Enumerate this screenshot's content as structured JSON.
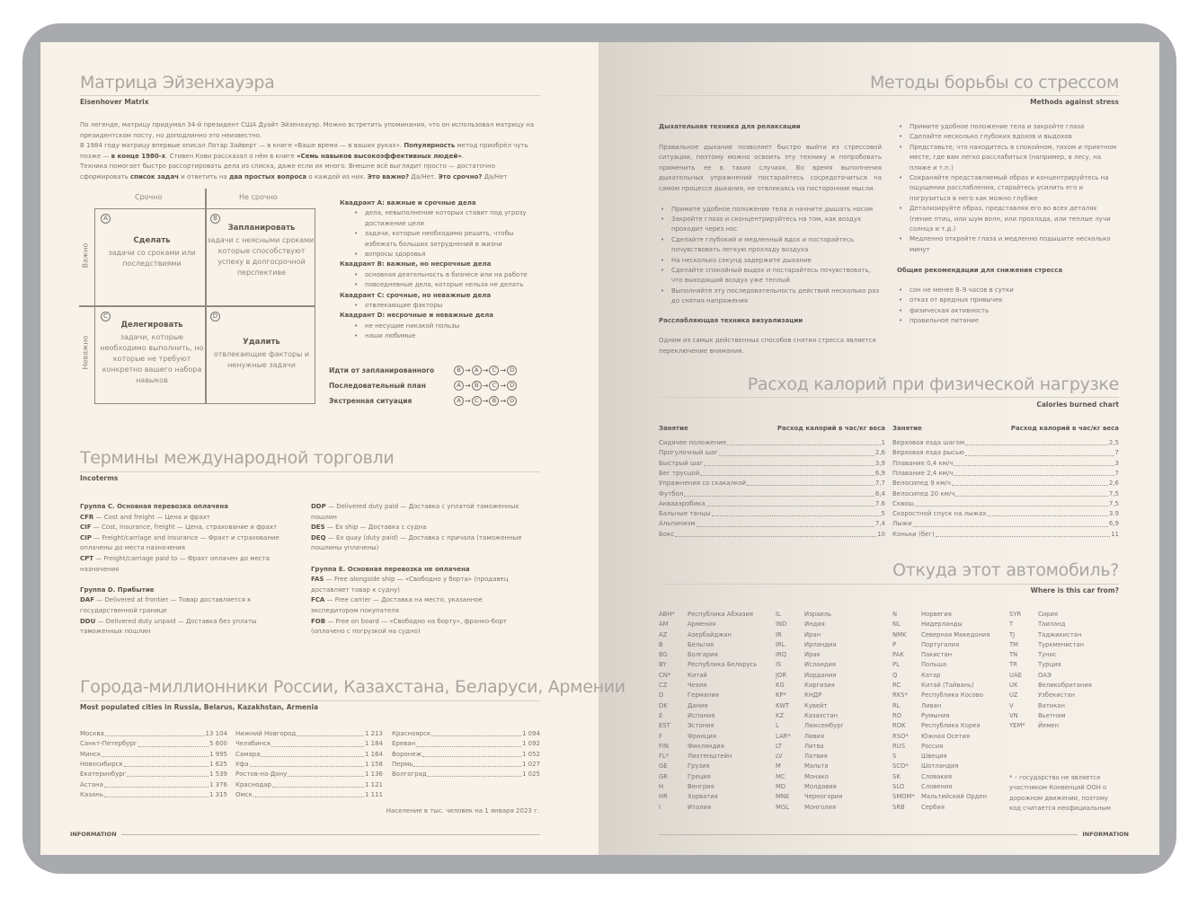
{
  "eisenhower": {
    "title": "Матрица Эйзенхауэра",
    "subtitle": "Eisenhover Matrix",
    "paragraph": [
      {
        "t": "По легенде, матрицу придумал 34-й президент США Дуайт Эйзенхауэр. Можно встретить упоминания, что он использовал матрицу на президентском посту, но доподлинно это неизвестно."
      },
      {
        "t": "\nВ 1984 году матрицу впервые описал Лотар Зайверт — в книге «Ваше время — в ваших руках». "
      },
      {
        "t": "Популярность",
        "b": true
      },
      {
        "t": " метод приобрёл чуть позже — "
      },
      {
        "t": "в конце 1980-х",
        "b": true
      },
      {
        "t": ". Стивен Кови рассказал о нём в книге "
      },
      {
        "t": "«Семь навыков высокоэффективных людей»",
        "b": true
      },
      {
        "t": "."
      },
      {
        "t": "\nТехника помогает быстро рассортировать дела из списка, даже если их много. Внешне всё выглядит просто — достаточно сформировать "
      },
      {
        "t": "список задач",
        "b": true
      },
      {
        "t": " и ответить на "
      },
      {
        "t": "два простых вопроса",
        "b": true
      },
      {
        "t": " о каждой из них. "
      },
      {
        "t": "Это важно?",
        "b": true
      },
      {
        "t": " Да/Нет. "
      },
      {
        "t": "Это срочно?",
        "b": true
      },
      {
        "t": " Да/Нет"
      }
    ],
    "col_urgent": "Срочно",
    "col_not_urgent": "Не срочно",
    "row_important": "Важно",
    "row_not_important": "Неважно",
    "quadrants": [
      {
        "letter": "A",
        "title": "Сделать",
        "text": "задачи со сроками или последствиями"
      },
      {
        "letter": "B",
        "title": "Запланировать",
        "text": "задачи с неясными сроками, которые способствуют успеху в долгосрочной перспективе"
      },
      {
        "letter": "C",
        "title": "Делегировать",
        "text": "задачи, которые необходимо выполнить, но которые не требуют конкретно вашего набора навыков"
      },
      {
        "letter": "D",
        "title": "Удалить",
        "text": "отвлекающие факторы и ненужные задачи"
      }
    ],
    "details": [
      {
        "head": "Квадрант A: важные и срочные дела",
        "items": [
          "дела, невыполнение которых ставит под угрозу достижение цели",
          "задачи, которые необходимо решить, чтобы избежать больших затруднений в жизни",
          "вопросы здоровья"
        ]
      },
      {
        "head": "Квадрант B: важные, но несрочные дела",
        "items": [
          "основная деятельность в бизнесе или на работе",
          "повседневные дела, которые нельзя не делать"
        ]
      },
      {
        "head": "Квадрант C: срочные, но неважные дела",
        "items": [
          "отвлекающие факторы"
        ]
      },
      {
        "head": "Квадрант D: несрочные и неважные дела",
        "items": [
          "не несущие никакой пользы",
          "наши любимые"
        ]
      }
    ],
    "sequences": [
      {
        "label": "Идти от запланированного",
        "order": [
          "B",
          "A",
          "C",
          "D"
        ]
      },
      {
        "label": "Последовательный план",
        "order": [
          "A",
          "B",
          "C",
          "D"
        ]
      },
      {
        "label": "Экстренная ситуация",
        "order": [
          "A",
          "C",
          "B",
          "D"
        ]
      }
    ]
  },
  "incoterms": {
    "title": "Термины международной торговли",
    "subtitle": "Incoterms",
    "col1": [
      {
        "head": "Группа C. Основная перевозка оплачена"
      },
      {
        "code": "CFR",
        "text": " — Cost and freight — Цена и фрахт"
      },
      {
        "code": "CIF",
        "text": " — Cost, insurance, freight — Цена, страхование и фрахт"
      },
      {
        "code": "CIP",
        "text": " — Freight/carriage and insurance — Фрахт и страхование оплачены до места назначения"
      },
      {
        "code": "CPT",
        "text": " — Freight/carriage paid to — Фрахт оплачен до места назначения"
      },
      {
        "gap": true
      },
      {
        "head": "Группа D. Прибытие"
      },
      {
        "code": "DAF",
        "text": " — Delivered at frontier — Товар доставляется к государственной границе"
      },
      {
        "code": "DDU",
        "text": " — Delivered duty unpaid — Доставка без уплаты таможенных пошлин"
      }
    ],
    "col2": [
      {
        "code": "DDP",
        "text": " — Delivered duty paid — Доставка с уплатой таможенных пошлин"
      },
      {
        "code": "DES",
        "text": " — Ex ship — Доставка с судна"
      },
      {
        "code": "DEQ",
        "text": " — Ex quay (duty paid) — Доставка с причала (таможенные пошлины уплачены)"
      },
      {
        "gap": true
      },
      {
        "head": "Группа E. Основная перевозка не оплачена"
      },
      {
        "code": "FAS",
        "text": " — Free alongside ship — «Свободно у борта» (продавец доставляет товар к судну)"
      },
      {
        "code": "FCA",
        "text": " — Free carrier — Доставка на место, указанное экспедитором покупателя"
      },
      {
        "code": "FOB",
        "text": " — Free on board — «Свободно на борту», франко-борт (оплачено с погрузкой на судно)"
      }
    ]
  },
  "cities": {
    "title": "Города-миллионники России, Казахстана, Беларуси, Армении",
    "subtitle": "Most populated cities in Russia, Belarus, Kazakhstan, Armenia",
    "columns": [
      [
        [
          "Москва",
          "13 104"
        ],
        [
          "Санкт-Петербург",
          "5 600"
        ],
        [
          "Минск",
          "1 995"
        ],
        [
          "Новосибирск",
          "1 625"
        ],
        [
          "Екатеринбург",
          "1 539"
        ],
        [
          "Астана",
          "1 376"
        ],
        [
          "Казань",
          "1 315"
        ]
      ],
      [
        [
          "Нижний Новгород",
          "1 213"
        ],
        [
          "Челябинск",
          "1 184"
        ],
        [
          "Самара",
          "1 164"
        ],
        [
          "Уфа",
          "1 158"
        ],
        [
          "Ростов-на-Дону",
          "1 136"
        ],
        [
          "Краснодар",
          "1 121"
        ],
        [
          "Омск",
          "1 111"
        ]
      ],
      [
        [
          "Красноярск",
          "1 094"
        ],
        [
          "Ереван",
          "1 092"
        ],
        [
          "Воронеж",
          "1 052"
        ],
        [
          "Пермь",
          "1 027"
        ],
        [
          "Волгоград",
          "1 025"
        ]
      ]
    ],
    "note": "Население в тыс. человек на 1 января 2023 г."
  },
  "footer_left": "INFORMATION",
  "footer_right": "INFORMATION",
  "stress": {
    "title": "Методы борьбы со стрессом",
    "subtitle": "Methods against stress",
    "breath_head": "Дыхательная техника для релаксации",
    "breath_text": "Правильное дыхание позволяет быстро выйти из стрессовой ситуации, поэтому можно освоить эту технику и попробовать применить ее в таких случаях. Во время выполнения дыхательных упражнений постарайтесь сосредоточиться на самом процессе дыхания, не отвлекаясь на посторонние мысли.",
    "breath_items": [
      "Примите удобное положение тела и начните дышать носом",
      "Закройте глаза и сконцентрируйтесь на том, как воздух проходит через нос",
      "Сделайте глубокий и медленный вдох и постарайтесь почувствовать легкую прохладу воздуха",
      "На несколько секунд задержите дыхание",
      "Сделайте спокойный выдох и постарайтесь почувствовать, что выходящий воздух уже теплый",
      "Выполняйте эту последовательность действий несколько раз до снятия напряжения"
    ],
    "visual_head": "Расслабляющая техника визуализации",
    "visual_text": "Одним из самых действенных способов снятия стресса является переключение внимания.",
    "visual_items": [
      "Примите удобное положение тела и закройте глаза",
      "Сделайте несколько глубоких вдохов и выдохов",
      "Представьте, что находитесь в спокойном, тихом и приятном месте, где вам легко расслабиться (например, в лесу, на пляже и т.п.)",
      "Сохраняйте представляемый образ и концентрируйтесь на ощущении расслабления, старайтесь усилить его и погрузиться в него как можно глубже",
      "Детализируйте образ, представляя его во всех деталях (пение птиц, или шум волн, или прохлада, или теплые лучи солнца и т.д.)",
      "Медленно откройте глаза и медленно подышите несколько минут"
    ],
    "general_head": "Общие рекомендации для снижения стресса",
    "general_items": [
      "сон не менее 8–9 часов в сутки",
      "отказ от вредных привычек",
      "физическая активность",
      "правильное питание"
    ]
  },
  "calories": {
    "title": "Расход калорий при физической нагрузке",
    "subtitle": "Calories burned chart",
    "col_activity": "Занятие",
    "col_value": "Расход калорий в час/кг веса",
    "columns": [
      [
        [
          "Сидячее положение",
          "1"
        ],
        [
          "Прогулочный шаг",
          "2,6"
        ],
        [
          "Быстрый шаг",
          "3,9"
        ],
        [
          "Бег трусцой",
          "6,9"
        ],
        [
          "Упражнения со скакалкой",
          "7,7"
        ],
        [
          "Футбол",
          "6,4"
        ],
        [
          "Аквааэробика",
          "7.6"
        ],
        [
          "Бальные танцы",
          "5"
        ],
        [
          "Альпинизм",
          "7,4"
        ],
        [
          "Бокс",
          "10"
        ]
      ],
      [
        [
          "Верховая езда шагом",
          "2,5"
        ],
        [
          "Верховая езда рысью",
          "7"
        ],
        [
          "Плавание 0,4 км/ч",
          "3"
        ],
        [
          "Плавание 2,4 км/ч",
          "7"
        ],
        [
          "Велосипед 9 км/ч",
          "2,6"
        ],
        [
          "Велосипед 20 км/ч",
          "7,5"
        ],
        [
          "Сквош",
          "7,5"
        ],
        [
          "Скоростной спуск на лыжах",
          "3.9"
        ],
        [
          "Лыжи",
          "6,9"
        ],
        [
          "Коньки (бег)",
          "11"
        ]
      ]
    ]
  },
  "cars": {
    "title": "Откуда этот автомобиль?",
    "subtitle": "Where is this car from?",
    "columns": [
      [
        [
          "ABH*",
          "Республика Абхазия"
        ],
        [
          "AM",
          "Армения"
        ],
        [
          "AZ",
          "Азербайджан"
        ],
        [
          "B",
          "Бельгия"
        ],
        [
          "BG",
          "Болгария"
        ],
        [
          "BY",
          "Республика Беларусь"
        ],
        [
          "CN*",
          "Китай"
        ],
        [
          "CZ",
          "Чехия"
        ],
        [
          "D",
          "Германия"
        ],
        [
          "DK",
          "Дания"
        ],
        [
          "E",
          "Испания"
        ],
        [
          "EST",
          "Эстония"
        ],
        [
          "F",
          "Франция"
        ],
        [
          "FIN",
          "Финляндия"
        ],
        [
          "FL*",
          "Лихтенштейн"
        ],
        [
          "GE",
          "Грузия"
        ],
        [
          "GR",
          "Греция"
        ],
        [
          "H",
          "Венгрия"
        ],
        [
          "HR",
          "Хорватия"
        ],
        [
          "I",
          "Италия"
        ]
      ],
      [
        [
          "IL",
          "Израиль"
        ],
        [
          "IND",
          "Индия"
        ],
        [
          "IR",
          "Иран"
        ],
        [
          "IRL",
          "Ирландия"
        ],
        [
          "IRQ",
          "Ирак"
        ],
        [
          "IS",
          "Исландия"
        ],
        [
          "JOR",
          "Иордания"
        ],
        [
          "KG",
          "Киргизия"
        ],
        [
          "KP*",
          "КНДР"
        ],
        [
          "KWT",
          "Кувейт"
        ],
        [
          "KZ",
          "Казахстан"
        ],
        [
          "L",
          "Люксембург"
        ],
        [
          "LAR*",
          "Ливия"
        ],
        [
          "LT",
          "Литва"
        ],
        [
          "LV",
          "Латвия"
        ],
        [
          "M",
          "Мальта"
        ],
        [
          "MC",
          "Монако"
        ],
        [
          "MD",
          "Молдавия"
        ],
        [
          "MNE",
          "Черногория"
        ],
        [
          "MGL",
          "Монголия"
        ]
      ],
      [
        [
          "N",
          "Норвегия"
        ],
        [
          "NL",
          "Нидерланды"
        ],
        [
          "NMK",
          "Северная Македония"
        ],
        [
          "P",
          "Португалия"
        ],
        [
          "PAK",
          "Пакистан"
        ],
        [
          "PL",
          "Польша"
        ],
        [
          "Q",
          "Катар"
        ],
        [
          "RC",
          "Китай (Тайвань)"
        ],
        [
          "RKS*",
          "Республика Косово"
        ],
        [
          "RL",
          "Ливан"
        ],
        [
          "RO",
          "Румыния"
        ],
        [
          "ROK",
          "Республика Корея"
        ],
        [
          "RSO*",
          "Южная Осетия"
        ],
        [
          "RUS",
          "Россия"
        ],
        [
          "S",
          "Швеция"
        ],
        [
          "SCO*",
          "Шотландия"
        ],
        [
          "SK",
          "Словакия"
        ],
        [
          "SLO",
          "Словения"
        ],
        [
          "SMOM*",
          "Мальтийский Орден"
        ],
        [
          "SRB",
          "Сербия"
        ]
      ],
      [
        [
          "SYR",
          "Сирия"
        ],
        [
          "T",
          "Таиланд"
        ],
        [
          "TJ",
          "Таджикистан"
        ],
        [
          "TM",
          "Туркменистан"
        ],
        [
          "TN",
          "Тунис"
        ],
        [
          "TR",
          "Турция"
        ],
        [
          "UAE",
          "ОАЭ"
        ],
        [
          "UK",
          "Великобритания"
        ],
        [
          "UZ",
          "Узбекистан"
        ],
        [
          "V",
          "Ватикан"
        ],
        [
          "VN",
          "Вьетнам"
        ],
        [
          "YEM*",
          "Йемен"
        ]
      ]
    ],
    "footnote": "* – государство не является участником Конвенций ООН о дорожном движении, поэтому код считается неофициальным"
  }
}
